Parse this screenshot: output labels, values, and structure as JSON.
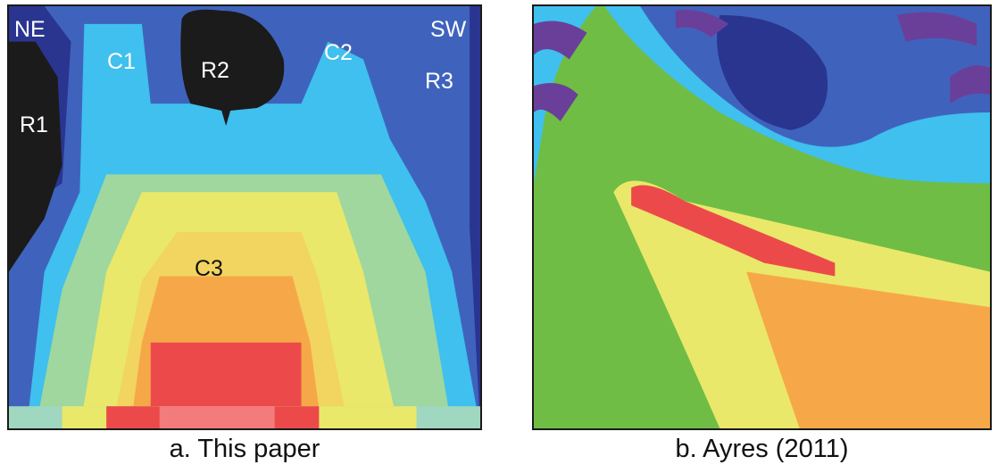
{
  "panel_a": {
    "labels": {
      "ne": "NE",
      "sw": "SW",
      "c1": "C1",
      "c2": "C2",
      "c3": "C3",
      "r1": "R1",
      "r2": "R2",
      "r3": "R3"
    },
    "caption": "a. This paper"
  },
  "panel_b": {
    "caption": "b. Ayres (2011)"
  },
  "colors": {
    "dark_blue": "#2a3590",
    "blue": "#3f63bd",
    "cyan": "#3fc0ee",
    "light_green": "#9fd79e",
    "green": "#6fbd45",
    "yellow": "#e9e86a",
    "orange": "#f6a848",
    "red": "#ec4a4a",
    "pink": "#f37b7b",
    "purple": "#6a3f9a",
    "black": "#1b1b1b"
  }
}
